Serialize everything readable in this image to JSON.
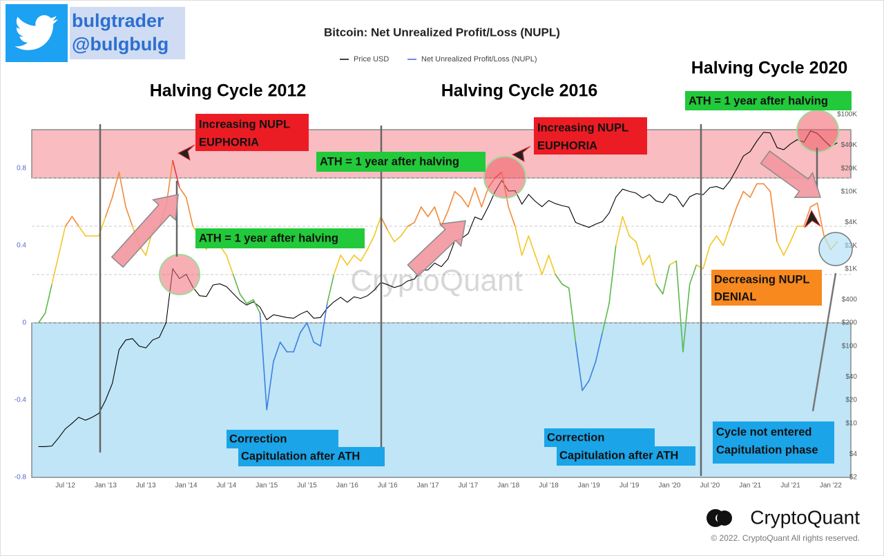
{
  "branding": {
    "name": "bulgtrader",
    "handle": "@bulgbulg"
  },
  "footer": {
    "logo": "CryptoQuant",
    "copyright": "© 2022. CryptoQuant All rights reserved."
  },
  "chart_data": {
    "type": "line",
    "title": "Bitcoin: Net Unrealized Profit/Loss (NUPL)",
    "watermark": "CryptoQuant",
    "legend": "top",
    "x": [
      "2012-03",
      "2012-04",
      "2012-05",
      "2012-06",
      "2012-07",
      "2012-08",
      "2012-09",
      "2012-10",
      "2012-11",
      "2012-12",
      "2013-01",
      "2013-02",
      "2013-03",
      "2013-04",
      "2013-05",
      "2013-06",
      "2013-07",
      "2013-08",
      "2013-09",
      "2013-10",
      "2013-11",
      "2013-12",
      "2014-01",
      "2014-02",
      "2014-03",
      "2014-04",
      "2014-05",
      "2014-06",
      "2014-07",
      "2014-08",
      "2014-09",
      "2014-10",
      "2014-11",
      "2014-12",
      "2015-01",
      "2015-02",
      "2015-03",
      "2015-04",
      "2015-05",
      "2015-06",
      "2015-07",
      "2015-08",
      "2015-09",
      "2015-10",
      "2015-11",
      "2015-12",
      "2016-01",
      "2016-02",
      "2016-03",
      "2016-04",
      "2016-05",
      "2016-06",
      "2016-07",
      "2016-08",
      "2016-09",
      "2016-10",
      "2016-11",
      "2016-12",
      "2017-01",
      "2017-02",
      "2017-03",
      "2017-04",
      "2017-05",
      "2017-06",
      "2017-07",
      "2017-08",
      "2017-09",
      "2017-10",
      "2017-11",
      "2017-12",
      "2018-01",
      "2018-02",
      "2018-03",
      "2018-04",
      "2018-05",
      "2018-06",
      "2018-07",
      "2018-08",
      "2018-09",
      "2018-10",
      "2018-11",
      "2018-12",
      "2019-01",
      "2019-02",
      "2019-03",
      "2019-04",
      "2019-05",
      "2019-06",
      "2019-07",
      "2019-08",
      "2019-09",
      "2019-10",
      "2019-11",
      "2019-12",
      "2020-01",
      "2020-02",
      "2020-03",
      "2020-04",
      "2020-05",
      "2020-06",
      "2020-07",
      "2020-08",
      "2020-09",
      "2020-10",
      "2020-11",
      "2020-12",
      "2021-01",
      "2021-02",
      "2021-03",
      "2021-04",
      "2021-05",
      "2021-06",
      "2021-07",
      "2021-08",
      "2021-09",
      "2021-10",
      "2021-11",
      "2021-12",
      "2022-01",
      "2022-02"
    ],
    "xlim": [
      "2012-02",
      "2022-04"
    ],
    "xticks": [
      {
        "value": "2012-07",
        "label": "Jul '12"
      },
      {
        "value": "2013-01",
        "label": "Jan '13"
      },
      {
        "value": "2013-07",
        "label": "Jul '13"
      },
      {
        "value": "2014-01",
        "label": "Jan '14"
      },
      {
        "value": "2014-07",
        "label": "Jul '14"
      },
      {
        "value": "2015-01",
        "label": "Jan '15"
      },
      {
        "value": "2015-07",
        "label": "Jul '15"
      },
      {
        "value": "2016-01",
        "label": "Jan '16"
      },
      {
        "value": "2016-07",
        "label": "Jul '16"
      },
      {
        "value": "2017-01",
        "label": "Jan '17"
      },
      {
        "value": "2017-07",
        "label": "Jul '17"
      },
      {
        "value": "2018-01",
        "label": "Jan '18"
      },
      {
        "value": "2018-07",
        "label": "Jul '18"
      },
      {
        "value": "2019-01",
        "label": "Jan '19"
      },
      {
        "value": "2019-07",
        "label": "Jul '19"
      },
      {
        "value": "2020-01",
        "label": "Jan '20"
      },
      {
        "value": "2020-07",
        "label": "Jul '20"
      },
      {
        "value": "2021-01",
        "label": "Jan '21"
      },
      {
        "value": "2021-07",
        "label": "Jul '21"
      },
      {
        "value": "2022-01",
        "label": "Jan '22"
      }
    ],
    "ylim": [
      -0.8,
      1.1
    ],
    "yticks": [
      -0.8,
      -0.4,
      0,
      0.4,
      0.8
    ],
    "y2lim": [
      2,
      113000
    ],
    "y2scale": "log",
    "y2ticks": [
      {
        "value": 2,
        "label": "$2"
      },
      {
        "value": 4,
        "label": "$4"
      },
      {
        "value": 10,
        "label": "$10"
      },
      {
        "value": 20,
        "label": "$20"
      },
      {
        "value": 40,
        "label": "$40"
      },
      {
        "value": 100,
        "label": "$100"
      },
      {
        "value": 200,
        "label": "$200"
      },
      {
        "value": 400,
        "label": "$400"
      },
      {
        "value": 1000,
        "label": "$1K"
      },
      {
        "value": 2000,
        "label": "$2K"
      },
      {
        "value": 4000,
        "label": "$4K"
      },
      {
        "value": 10000,
        "label": "$10K"
      },
      {
        "value": 20000,
        "label": "$20K"
      },
      {
        "value": 40000,
        "label": "$40K"
      },
      {
        "value": 100000,
        "label": "$100K"
      }
    ],
    "bands": [
      {
        "from": -0.8,
        "to": 0,
        "color": "#bfe5f7"
      },
      {
        "from": 0.75,
        "to": 1,
        "color": "#f8bcc1"
      }
    ],
    "series": [
      {
        "name": "Price USD",
        "color": "#000000",
        "axis": "y2",
        "values": [
          5,
          5,
          5.1,
          6.5,
          8.5,
          10,
          12,
          11,
          12,
          13.5,
          20,
          33,
          90,
          120,
          125,
          100,
          95,
          120,
          130,
          200,
          1000,
          750,
          850,
          580,
          450,
          440,
          620,
          640,
          590,
          480,
          390,
          340,
          375,
          320,
          220,
          255,
          245,
          235,
          230,
          260,
          285,
          230,
          235,
          310,
          375,
          430,
          370,
          435,
          415,
          450,
          530,
          670,
          625,
          575,
          610,
          700,
          740,
          960,
          970,
          1190,
          1070,
          1350,
          2300,
          2480,
          2870,
          4700,
          4340,
          6400,
          10000,
          14000,
          10200,
          10300,
          6900,
          9200,
          7500,
          6400,
          7700,
          7000,
          6600,
          6300,
          4000,
          3700,
          3450,
          3800,
          4100,
          5300,
          8500,
          10800,
          10100,
          9600,
          8300,
          9200,
          7600,
          7200,
          9350,
          8600,
          6400,
          8600,
          9450,
          9150,
          11300,
          11650,
          10800,
          13800,
          19700,
          29000,
          33100,
          45200,
          58800,
          57700,
          37300,
          35000,
          41500,
          47100,
          43800,
          61300,
          57000,
          46300,
          38500,
          43200
        ]
      },
      {
        "name": "Net Unrealized Profit/Loss (NUPL)",
        "color": "#4a5fd6",
        "zone_thresholds": [
          0,
          0.25,
          0.5,
          0.75
        ],
        "zone_colors": [
          "#3d7fe0",
          "#5bb84a",
          "#f2c624",
          "#f28a3a",
          "#e8353c"
        ],
        "values": [
          0,
          0.05,
          0.2,
          0.35,
          0.5,
          0.55,
          0.5,
          0.45,
          0.45,
          0.45,
          0.55,
          0.65,
          0.78,
          0.6,
          0.5,
          0.4,
          0.35,
          0.48,
          0.5,
          0.6,
          0.84,
          0.7,
          0.65,
          0.5,
          0.45,
          0.38,
          0.45,
          0.4,
          0.35,
          0.25,
          0.15,
          0.1,
          0.12,
          0.05,
          -0.45,
          -0.2,
          -0.1,
          -0.15,
          -0.15,
          -0.05,
          0,
          -0.1,
          -0.12,
          0.1,
          0.25,
          0.35,
          0.3,
          0.35,
          0.32,
          0.38,
          0.45,
          0.55,
          0.48,
          0.42,
          0.45,
          0.5,
          0.52,
          0.6,
          0.55,
          0.6,
          0.5,
          0.58,
          0.68,
          0.65,
          0.6,
          0.7,
          0.6,
          0.7,
          0.75,
          0.78,
          0.6,
          0.5,
          0.35,
          0.45,
          0.35,
          0.25,
          0.35,
          0.25,
          0.2,
          0.18,
          -0.1,
          -0.35,
          -0.3,
          -0.2,
          -0.05,
          0.1,
          0.4,
          0.55,
          0.45,
          0.42,
          0.3,
          0.35,
          0.2,
          0.15,
          0.3,
          0.32,
          -0.15,
          0.2,
          0.3,
          0.28,
          0.4,
          0.45,
          0.4,
          0.5,
          0.6,
          0.68,
          0.65,
          0.72,
          0.72,
          0.68,
          0.42,
          0.35,
          0.42,
          0.5,
          0.5,
          0.6,
          0.62,
          0.45,
          0.38,
          0.42
        ]
      }
    ],
    "annotations": [
      {
        "lines": [
          "Halving Cycle 2012"
        ]
      },
      {
        "lines": [
          "Halving Cycle 2016"
        ]
      },
      {
        "lines": [
          "Halving Cycle 2020"
        ]
      },
      {
        "lines": [
          "Increasing NUPL",
          "EUPHORIA"
        ]
      },
      {
        "lines": [
          "Increasing NUPL",
          "EUPHORIA"
        ]
      },
      {
        "lines": [
          "ATH = 1 year after halving"
        ]
      },
      {
        "lines": [
          "ATH = 1 year after halving"
        ]
      },
      {
        "lines": [
          "ATH = 1 year after halving"
        ]
      },
      {
        "lines": [
          "Correction",
          "Capitulation after ATH"
        ]
      },
      {
        "lines": [
          "Correction",
          "Capitulation after ATH"
        ]
      },
      {
        "lines": [
          "Decreasing NUPL",
          "DENIAL"
        ]
      },
      {
        "lines": [
          "Cycle not entered",
          "Capitulation phase"
        ]
      }
    ]
  }
}
